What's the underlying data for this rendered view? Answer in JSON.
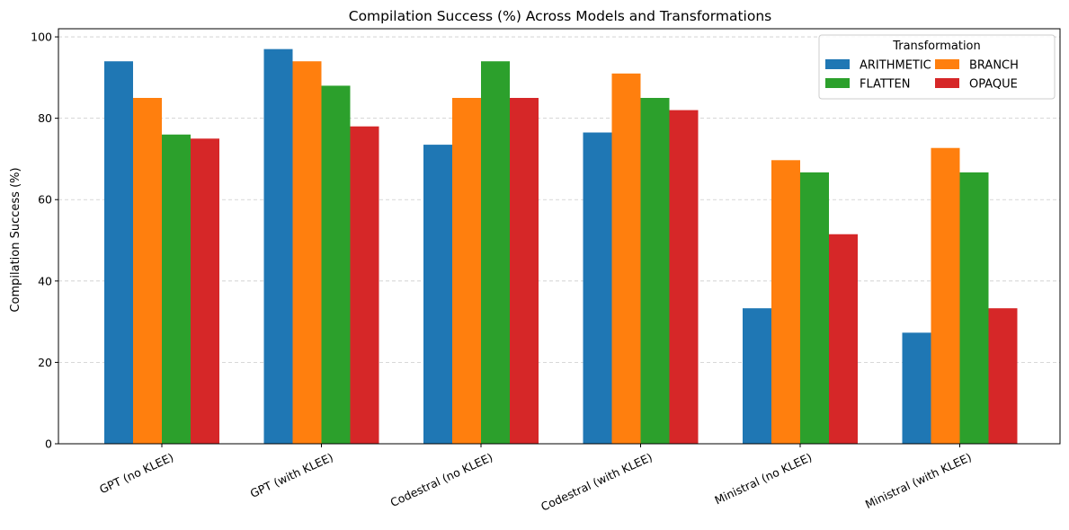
{
  "chart_data": {
    "type": "bar",
    "title": "Compilation Success (%) Across Models and Transformations",
    "xlabel": "",
    "ylabel": "Compilation Success (%)",
    "ylim": [
      0,
      102
    ],
    "yticks": [
      0,
      20,
      40,
      60,
      80,
      100
    ],
    "grid": "y-dashed",
    "legend": {
      "title": "Transformation",
      "placement": "top-right",
      "columns": 2
    },
    "categories": [
      "GPT (no KLEE)",
      "GPT (with KLEE)",
      "Codestral (no KLEE)",
      "Codestral (with KLEE)",
      "Ministral (no KLEE)",
      "Ministral (with KLEE)"
    ],
    "series": [
      {
        "name": "ARITHMETIC",
        "color": "#1f77b4",
        "values": [
          94.0,
          97.0,
          73.5,
          76.5,
          33.3,
          27.3
        ]
      },
      {
        "name": "BRANCH",
        "color": "#ff7f0e",
        "values": [
          85.0,
          94.0,
          85.0,
          91.0,
          69.7,
          72.7
        ]
      },
      {
        "name": "FLATTEN",
        "color": "#2ca02c",
        "values": [
          76.0,
          88.0,
          94.0,
          85.0,
          66.7,
          66.7
        ]
      },
      {
        "name": "OPAQUE",
        "color": "#d62728",
        "values": [
          75.0,
          78.0,
          85.0,
          82.0,
          51.5,
          33.3
        ]
      }
    ]
  }
}
